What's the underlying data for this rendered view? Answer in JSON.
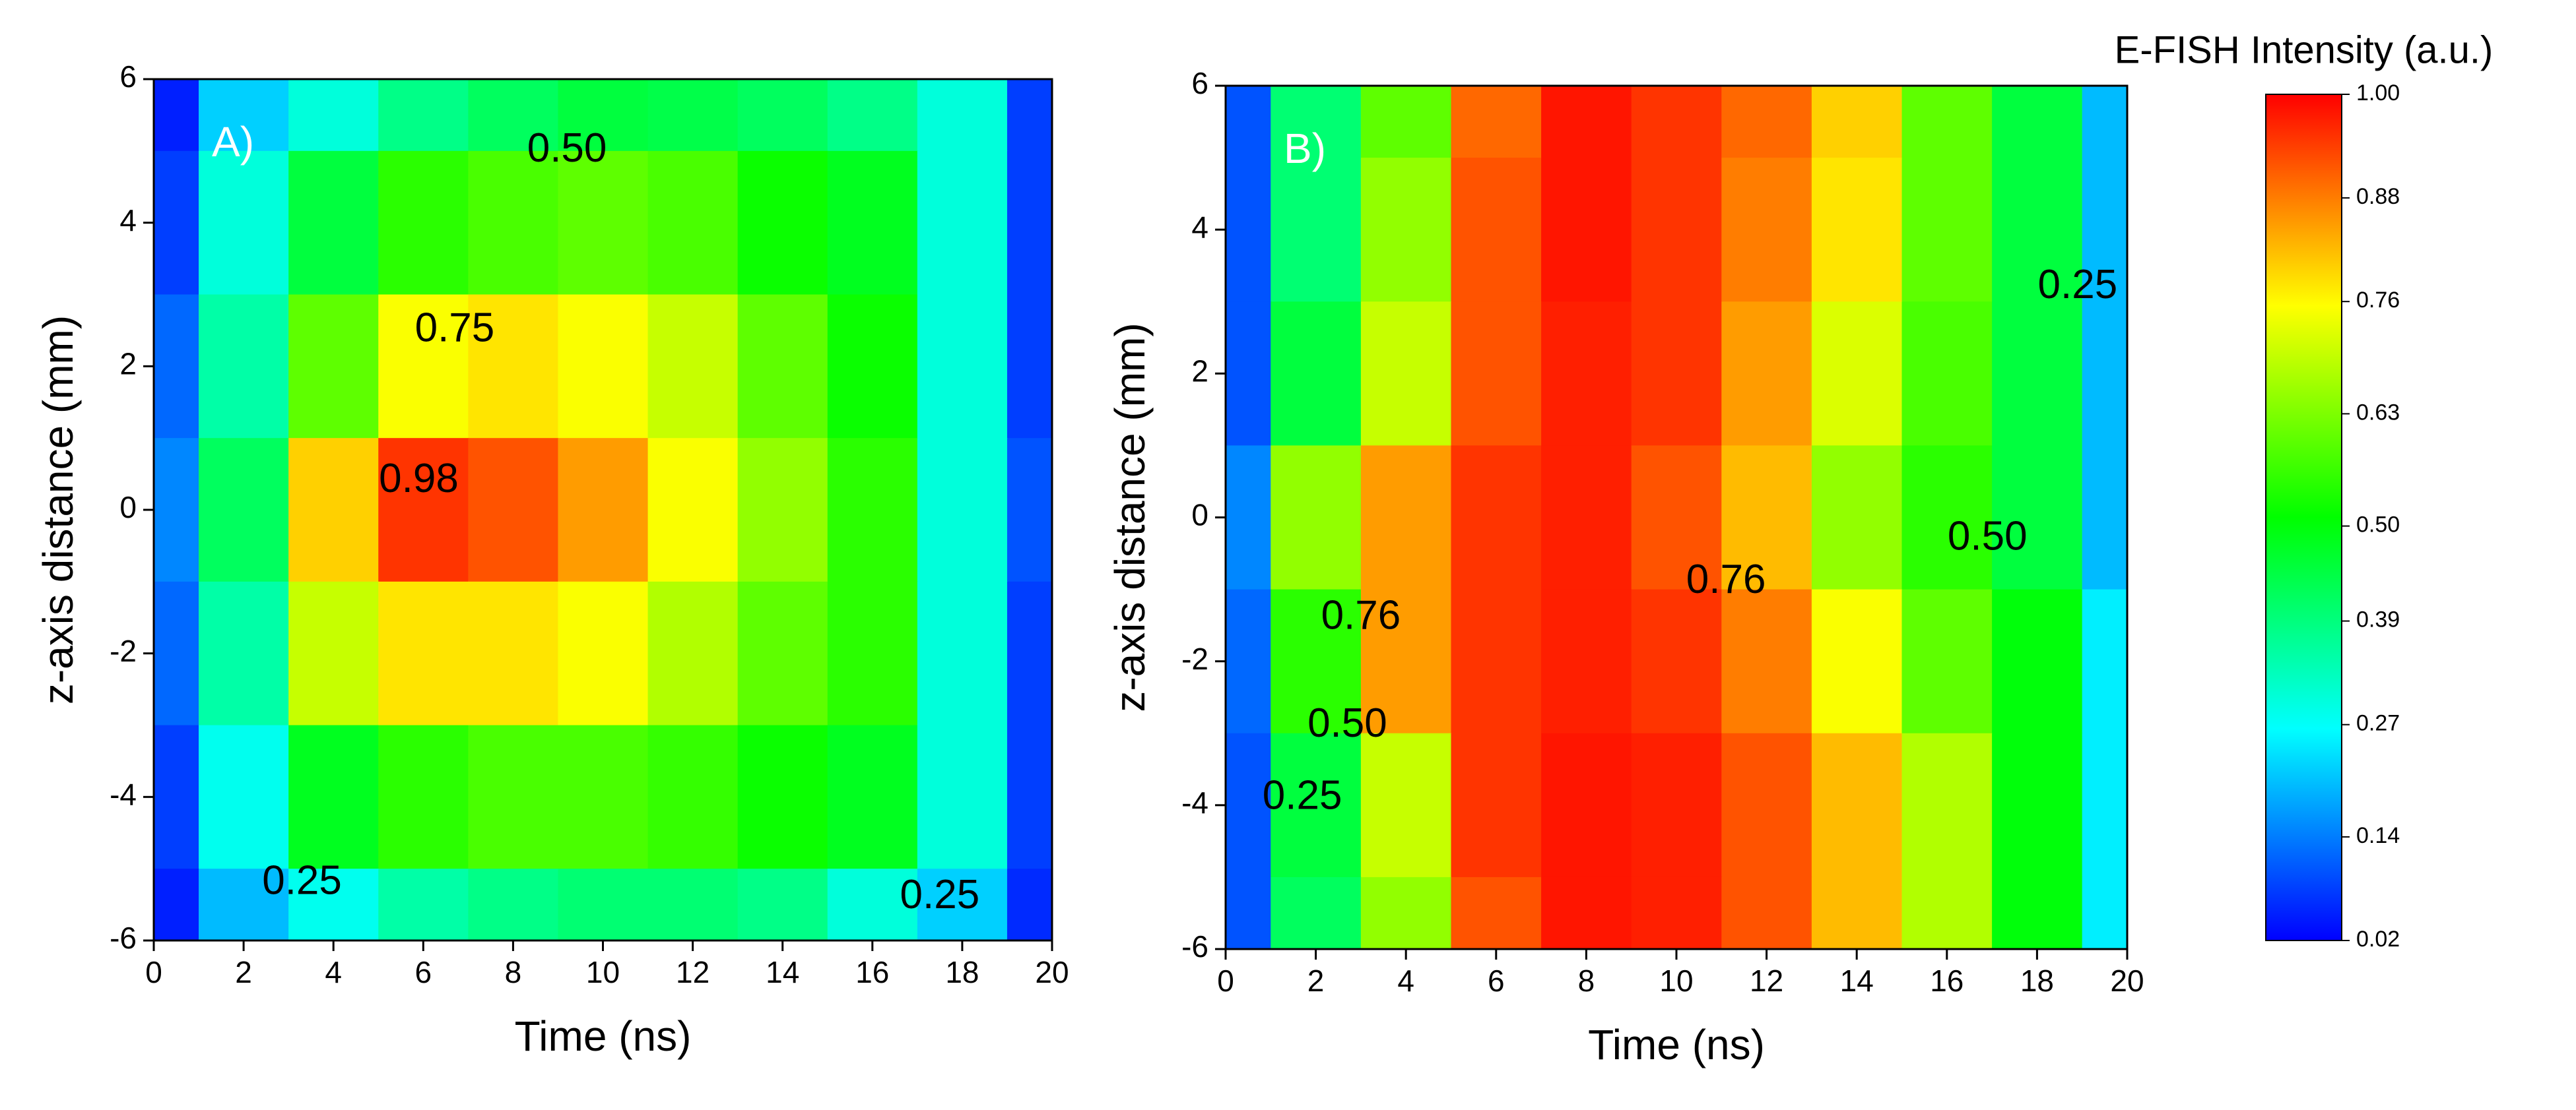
{
  "chart_data": [
    {
      "type": "contour",
      "title": "A)",
      "xlabel": "Time (ns)",
      "ylabel": "z-axis distance (mm)",
      "x": [
        0,
        2,
        4,
        6,
        8,
        10,
        12,
        14,
        16,
        18,
        20
      ],
      "y": [
        6,
        4,
        2,
        0,
        -2,
        -4,
        -6
      ],
      "z": [
        [
          0.05,
          0.22,
          0.3,
          0.38,
          0.42,
          0.45,
          0.44,
          0.42,
          0.38,
          0.3,
          0.08
        ],
        [
          0.08,
          0.3,
          0.45,
          0.55,
          0.58,
          0.6,
          0.58,
          0.52,
          0.48,
          0.3,
          0.08
        ],
        [
          0.12,
          0.35,
          0.6,
          0.75,
          0.78,
          0.75,
          0.7,
          0.6,
          0.52,
          0.3,
          0.08
        ],
        [
          0.15,
          0.42,
          0.8,
          0.95,
          0.92,
          0.85,
          0.75,
          0.65,
          0.55,
          0.3,
          0.1
        ],
        [
          0.12,
          0.35,
          0.7,
          0.78,
          0.78,
          0.75,
          0.68,
          0.6,
          0.55,
          0.3,
          0.08
        ],
        [
          0.08,
          0.28,
          0.48,
          0.55,
          0.58,
          0.58,
          0.56,
          0.52,
          0.48,
          0.3,
          0.08
        ],
        [
          0.05,
          0.2,
          0.28,
          0.35,
          0.38,
          0.4,
          0.4,
          0.38,
          0.3,
          0.22,
          0.06
        ]
      ],
      "xlim": [
        0,
        20
      ],
      "ylim": [
        -6,
        6
      ],
      "xticks": [
        0,
        2,
        4,
        6,
        8,
        10,
        12,
        14,
        16,
        18,
        20
      ],
      "yticks": [
        -6,
        -4,
        -2,
        0,
        2,
        4,
        6
      ],
      "contour_labels": [
        {
          "value": 0.5,
          "label": "0.50"
        },
        0.75,
        0.98,
        0.25,
        0.25
      ]
    },
    {
      "type": "contour",
      "title": "B)",
      "xlabel": "Time (ns)",
      "ylabel": "z-axis distance (mm)",
      "x": [
        0,
        2,
        4,
        6,
        8,
        10,
        12,
        14,
        16,
        18,
        20
      ],
      "y": [
        6,
        4,
        2,
        0,
        -2,
        -4,
        -6
      ],
      "z": [
        [
          0.1,
          0.4,
          0.6,
          0.9,
          0.98,
          0.95,
          0.9,
          0.8,
          0.6,
          0.45,
          0.2
        ],
        [
          0.1,
          0.4,
          0.65,
          0.92,
          0.98,
          0.95,
          0.88,
          0.78,
          0.6,
          0.45,
          0.2
        ],
        [
          0.1,
          0.45,
          0.7,
          0.92,
          0.97,
          0.95,
          0.85,
          0.72,
          0.58,
          0.45,
          0.2
        ],
        [
          0.15,
          0.65,
          0.85,
          0.95,
          0.97,
          0.92,
          0.82,
          0.65,
          0.55,
          0.45,
          0.2
        ],
        [
          0.12,
          0.55,
          0.85,
          0.95,
          0.97,
          0.95,
          0.88,
          0.75,
          0.6,
          0.5,
          0.25
        ],
        [
          0.1,
          0.45,
          0.7,
          0.95,
          0.98,
          0.97,
          0.92,
          0.82,
          0.68,
          0.5,
          0.25
        ],
        [
          0.1,
          0.42,
          0.65,
          0.92,
          0.98,
          0.97,
          0.92,
          0.82,
          0.68,
          0.5,
          0.25
        ]
      ],
      "xlim": [
        0,
        20
      ],
      "ylim": [
        -6,
        6
      ],
      "xticks": [
        0,
        2,
        4,
        6,
        8,
        10,
        12,
        14,
        16,
        18,
        20
      ],
      "yticks": [
        -6,
        -4,
        -2,
        0,
        2,
        4,
        6
      ],
      "contour_labels": [
        0.25,
        {
          "value": 0.5,
          "label": "0.50"
        },
        0.76,
        0.76,
        {
          "value": 0.5,
          "label": "0.50"
        },
        0.25
      ]
    },
    {
      "type": "colorbar",
      "title": "E-FISH Intensity (a.u.)",
      "zlim": [
        0.02,
        1
      ],
      "ticks": [
        0.02,
        0.14,
        0.27,
        0.39,
        {
          "value": 0.5,
          "label": "0.50"
        },
        0.63,
        0.76,
        0.88,
        {
          "value": 1,
          "label": "1.00"
        }
      ],
      "colors": [
        "#0000ff",
        "#00ffff",
        "#00ff00",
        "#ffff00",
        "#ff0000"
      ]
    }
  ]
}
